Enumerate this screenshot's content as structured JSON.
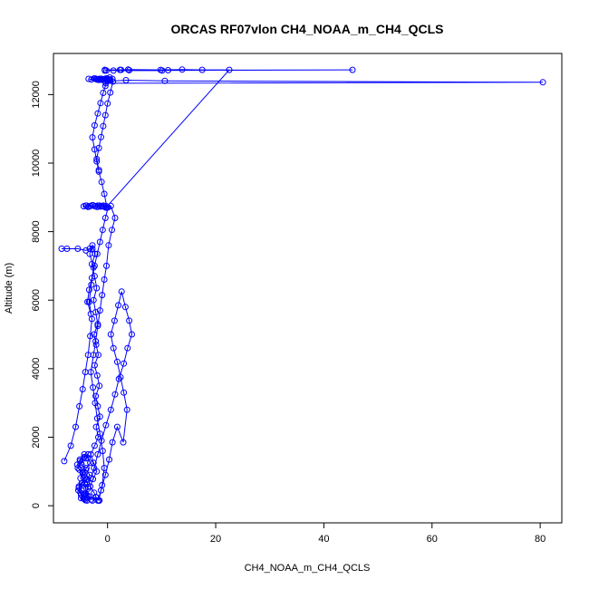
{
  "chart_data": {
    "type": "scatter",
    "title": "ORCAS RF07vlon CH4_NOAA_m_CH4_QCLS",
    "xlabel": "CH4_NOAA_m_CH4_QCLS",
    "ylabel": "Altitude (m)",
    "xlim": [
      -10,
      84
    ],
    "ylim": [
      -500,
      13200
    ],
    "xticks": [
      0,
      20,
      40,
      60,
      80
    ],
    "yticks": [
      0,
      2000,
      4000,
      6000,
      8000,
      10000,
      12000
    ],
    "grid": false,
    "legend": "none",
    "color": "#0000ff",
    "marker": "open-circle",
    "connected": true,
    "series": [
      {
        "x": [
          -1.5,
          -2.2,
          -3.0,
          -3.8,
          -4.5,
          -5.0,
          -5.3,
          -4.8,
          -4.2,
          -4.6,
          -5.5,
          -4.9,
          -4.0,
          -3.6,
          -4.3,
          -5.1,
          -5.6,
          -5.2,
          -4.4,
          -3.9,
          -4.7,
          -5.3,
          -4.8,
          -4.1,
          -3.5,
          -4.2,
          -4.9,
          -5.4,
          -4.6,
          -3.8,
          -3.3,
          -4.0,
          -4.8,
          -5.1,
          -4.3,
          -3.7,
          -3.2,
          -3.9,
          -4.6,
          -5.0,
          -4.2,
          -3.6,
          -4.3,
          -4.9,
          -4.1
        ],
        "y": [
          150,
          250,
          180,
          300,
          220,
          380,
          520,
          650,
          820,
          980,
          1100,
          1250,
          1380,
          1500,
          1420,
          1300,
          1200,
          1050,
          900,
          780,
          650,
          560,
          450,
          360,
          280,
          200,
          320,
          450,
          600,
          750,
          900,
          1050,
          1200,
          1350,
          1500,
          1400,
          1250,
          1100,
          950,
          800,
          650,
          500,
          350,
          220,
          160
        ]
      },
      {
        "x": [
          -8.0,
          -6.8,
          -5.9,
          -5.2,
          -4.6,
          -4.1,
          -3.6,
          -3.2,
          -2.9,
          -3.4,
          -3.0,
          -2.6,
          -3.3,
          -2.8,
          -2.3,
          -2.9,
          -2.4,
          -2.0,
          -2.6,
          -2.2,
          -1.8,
          -2.5,
          -2.1,
          -1.7,
          -2.4,
          -1.9,
          -1.5,
          -2.2,
          -1.8,
          -1.4,
          -2.1,
          -1.7,
          -2.4,
          -3.1,
          -2.6,
          -2.0,
          -2.7,
          -3.2,
          -2.5,
          -2.1,
          -2.8
        ],
        "y": [
          1300,
          1750,
          2300,
          2900,
          3400,
          3900,
          4400,
          4950,
          5450,
          5950,
          6450,
          6950,
          7350,
          7600,
          7350,
          7050,
          6700,
          6350,
          6000,
          5650,
          5300,
          5000,
          4700,
          4400,
          4100,
          3800,
          3500,
          3200,
          2900,
          2600,
          2300,
          2000,
          1750,
          1500,
          1250,
          1000,
          780,
          560,
          380,
          250,
          150
        ]
      },
      {
        "x": [
          -1.8,
          -1.2,
          -0.4,
          0.3,
          0.9,
          1.8,
          2.9,
          3.6,
          3.0,
          2.4,
          1.8,
          1.1,
          0.6,
          1.3,
          2.0,
          2.6,
          3.3,
          4.0,
          4.5,
          3.7,
          3.0,
          2.1,
          1.4,
          0.6,
          -0.3,
          -1.1,
          -1.8,
          -2.5,
          -3.1,
          -3.6,
          -4.0,
          -4.3,
          -3.8
        ],
        "y": [
          150,
          450,
          900,
          1350,
          1850,
          2300,
          1850,
          2800,
          3300,
          3750,
          4200,
          4600,
          5000,
          5400,
          5850,
          6250,
          5800,
          5400,
          5000,
          4600,
          4150,
          3700,
          3250,
          2800,
          2350,
          1900,
          1500,
          1100,
          800,
          550,
          350,
          200,
          150
        ]
      },
      {
        "x": [
          -1.6,
          -1.0,
          -0.6,
          -0.9,
          -1.4,
          -1.9,
          -2.3,
          -2.7,
          -3.1,
          -2.6,
          -2.2,
          -1.8,
          -1.4,
          -1.0,
          -0.6,
          -0.2,
          0.2,
          0.8,
          1.4,
          0.6,
          -0.2,
          -0.8,
          -1.3,
          -1.8,
          -2.3,
          -2.8,
          -3.2,
          -3.6,
          -4.0,
          -4.4,
          -3.9,
          -3.5,
          -3.1,
          -2.7,
          -2.3,
          -1.9,
          -1.5,
          -1.1,
          -0.7,
          -0.3,
          0.1,
          -0.4,
          -0.9,
          -1.4,
          -1.9,
          -2.4,
          -2.9,
          -3.4,
          -3.7,
          -3.1
        ],
        "y": [
          150,
          600,
          1100,
          1600,
          2100,
          2550,
          3000,
          3450,
          3900,
          4400,
          4800,
          5250,
          5700,
          6150,
          6600,
          7000,
          7600,
          8050,
          8400,
          8750,
          8700,
          8760,
          8730,
          8760,
          8740,
          8770,
          8750,
          8720,
          8760,
          8740,
          8760,
          8730,
          8750,
          8770,
          8740,
          8720,
          8760,
          8740,
          8730,
          8750,
          8710,
          8400,
          8050,
          7700,
          7350,
          7000,
          6650,
          6300,
          5950,
          5600
        ]
      },
      {
        "x": [
          -8.5,
          -7.5,
          -5.5,
          -4.0,
          -3.3,
          -2.8
        ],
        "y": [
          7500,
          7500,
          7500,
          7450,
          7500,
          7500
        ]
      },
      {
        "x": [
          -0.1,
          -0.6,
          -1.1,
          -1.6,
          -2.0,
          -2.4,
          -2.8,
          -2.4,
          -1.8,
          -1.3,
          -0.8,
          -0.4,
          0.0,
          -0.5,
          -1.0,
          -1.5,
          -1.9,
          -2.3,
          -1.9,
          -1.5,
          -1.1,
          -0.7,
          -0.3,
          0.1,
          0.5,
          0.9,
          0.4,
          -0.1,
          -0.5
        ],
        "y": [
          8700,
          9100,
          9450,
          9750,
          10050,
          10400,
          10750,
          11100,
          11450,
          11750,
          12050,
          12250,
          12400,
          12450,
          12430,
          12460,
          12440,
          12470,
          12450,
          12430,
          12460,
          12440,
          12470,
          12450,
          12430,
          12460,
          12500,
          12420,
          12450
        ]
      },
      {
        "x": [
          -3.5,
          -3.0,
          -2.5,
          -2.1,
          -1.7,
          -1.3,
          -0.9,
          -0.5,
          -0.1,
          0.4,
          1.0,
          0.5,
          0.0,
          -0.4,
          -0.8,
          -1.2,
          -1.6,
          -2.0,
          -1.6
        ],
        "y": [
          12460,
          12440,
          12470,
          12450,
          12430,
          12460,
          12440,
          12450,
          12470,
          12440,
          12380,
          12060,
          11740,
          11400,
          11080,
          10760,
          10440,
          10120,
          9800
        ]
      },
      {
        "x": [
          -0.5,
          2.5,
          3.8,
          9.8,
          13.8,
          17.5,
          22.5,
          -0.3
        ],
        "y": [
          12720,
          12720,
          12730,
          12720,
          12730,
          12720,
          12720,
          8700
        ]
      },
      {
        "x": [
          -0.5,
          1.1,
          2.3,
          4.0,
          10.1,
          11.2,
          45.3,
          -0.2
        ],
        "y": [
          12700,
          12700,
          12720,
          12710,
          12700,
          12710,
          12720,
          12700
        ]
      },
      {
        "x": [
          -0.4,
          3.4,
          10.6,
          80.5,
          -0.3
        ],
        "y": [
          12380,
          12420,
          12400,
          12360,
          12330
        ]
      }
    ]
  }
}
